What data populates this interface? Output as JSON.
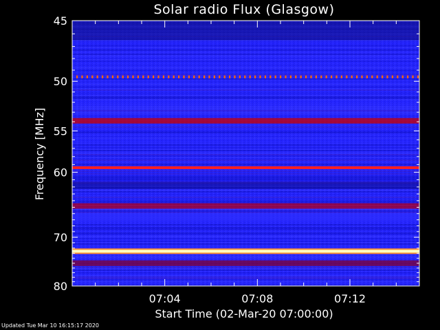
{
  "footer_text": "Updated Tue Mar 10 16:15:17 2020",
  "chart_data": {
    "type": "heatmap",
    "title": "Solar radio Flux (Glasgow)",
    "xlabel": "Start Time (02-Mar-20 07:00:00)",
    "ylabel": "Frequency [MHz]",
    "x_ticks": [
      "07:04",
      "07:08",
      "07:12"
    ],
    "x_tick_minutes": [
      4,
      8,
      12
    ],
    "xlim_minutes": [
      0,
      15
    ],
    "y_ticks": [
      45,
      50,
      55,
      60,
      70,
      80
    ],
    "ylim": [
      45,
      80
    ],
    "y_scale": "reciprocal",
    "colormap": [
      "#000080",
      "#1a1aff",
      "#2828ff",
      "#8b0030",
      "#cc1010",
      "#ff2020",
      "#ff8000",
      "#ffff90",
      "#ffffff"
    ],
    "emission_bands": [
      {
        "freq_mhz": 49.6,
        "color": "#ff6600",
        "pattern": "periodic-dots"
      },
      {
        "freq_mhz": 53.9,
        "color": "#cc0000",
        "pattern": "band"
      },
      {
        "freq_mhz": 59.4,
        "color": "#ff2020",
        "pattern": "line"
      },
      {
        "freq_mhz": 64.8,
        "color": "#b00020",
        "pattern": "band"
      },
      {
        "freq_mhz": 72.6,
        "color": "#ffffc0",
        "pattern": "bright-line"
      },
      {
        "freq_mhz": 75.0,
        "color": "#800030",
        "pattern": "band"
      }
    ]
  }
}
